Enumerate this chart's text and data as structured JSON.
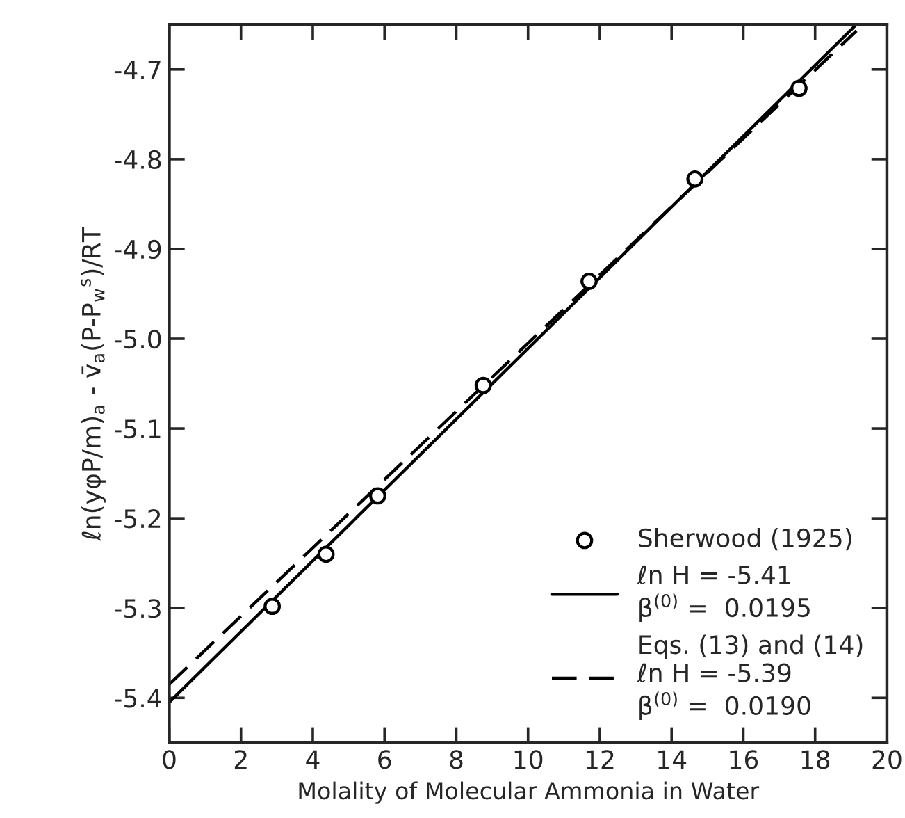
{
  "chart_data": {
    "type": "scatter",
    "xlabel": "Molality of Molecular Ammonia in Water",
    "ylabel": "ℓn(yφP/m)$_{a}$ - v̄$_{a}$(P-P$_{w}$$^{s}$)/RT",
    "series": [
      {
        "name": "Sherwood (1925)",
        "marker": "circle",
        "color": "#000000",
        "x": [
          2.87,
          4.37,
          5.81,
          8.75,
          11.7,
          14.65,
          17.55
        ],
        "values": [
          -5.298,
          -5.24,
          -5.175,
          -5.052,
          -4.936,
          -4.822,
          -4.721
        ]
      },
      {
        "name": "ℓn H = -5.41\nβ$^{(0)}$ =  0.0195",
        "type": "line",
        "line_style": "solid",
        "color": "#000000",
        "x": [
          0,
          19.15
        ],
        "values": [
          -5.405,
          -4.65
        ]
      },
      {
        "name": "Eqs. (13) and (14)\nℓn H = -5.39\nβ$^{(0)}$ =  0.0190",
        "type": "line",
        "line_style": "dashed",
        "color": "#000000",
        "x": [
          0,
          19.15
        ],
        "values": [
          -5.385,
          -4.657
        ]
      }
    ],
    "xlim": [
      0,
      20
    ],
    "xticks": [
      0,
      2,
      4,
      6,
      8,
      10,
      12,
      14,
      16,
      18,
      20
    ],
    "ylim": [
      -5.45,
      -4.65
    ],
    "yticks": [
      -5.4,
      -5.3,
      -5.2,
      -5.1,
      {
        "value": -5.0,
        "label": "-5.0"
      },
      -4.9,
      -4.8,
      -4.7
    ],
    "grid": false,
    "legend": "bottom right"
  }
}
